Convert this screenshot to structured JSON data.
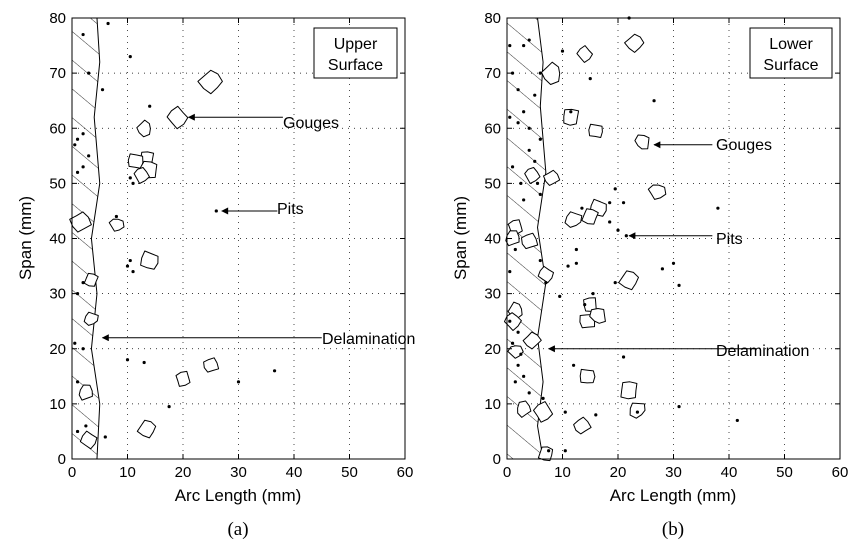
{
  "figure": {
    "panels": [
      {
        "caption": "(a)",
        "legend": [
          "Upper",
          "Surface"
        ],
        "annotations": [
          "Gouges",
          "Pits",
          "Delamination"
        ],
        "chart_data": {
          "type": "scatter",
          "xlabel": "Arc Length (mm)",
          "ylabel": "Span (mm)",
          "xlim": [
            0,
            60
          ],
          "ylim": [
            0,
            80
          ],
          "xticks": [
            "0",
            "10",
            "20",
            "30",
            "40",
            "50",
            "60"
          ],
          "yticks": [
            "0",
            "10",
            "20",
            "30",
            "40",
            "50",
            "60",
            "70",
            "80"
          ],
          "grid": "dotted",
          "delamination_boundary": [
            [
              4.5,
              80
            ],
            [
              5.0,
              72
            ],
            [
              4.0,
              62
            ],
            [
              5.0,
              50
            ],
            [
              3.5,
              40
            ],
            [
              4.5,
              30
            ],
            [
              3.5,
              20
            ],
            [
              5.0,
              10
            ],
            [
              4.5,
              0
            ]
          ],
          "pits": [
            [
              2,
              77
            ],
            [
              6.5,
              79
            ],
            [
              10.5,
              73
            ],
            [
              3,
              70
            ],
            [
              5.5,
              67
            ],
            [
              14,
              64
            ],
            [
              1,
              58
            ],
            [
              2,
              59
            ],
            [
              0.5,
              57
            ],
            [
              3,
              55
            ],
            [
              2,
              53
            ],
            [
              1,
              52
            ],
            [
              10.5,
              51
            ],
            [
              11,
              50
            ],
            [
              8,
              44
            ],
            [
              10.5,
              36
            ],
            [
              10,
              35
            ],
            [
              11,
              34
            ],
            [
              2,
              32
            ],
            [
              1,
              30
            ],
            [
              2,
              20
            ],
            [
              0.5,
              21
            ],
            [
              10,
              18
            ],
            [
              13,
              17.5
            ],
            [
              36.5,
              16
            ],
            [
              30,
              14
            ],
            [
              1,
              14
            ],
            [
              17.5,
              9.5
            ],
            [
              2.5,
              6
            ],
            [
              1,
              5
            ],
            [
              6,
              4
            ],
            [
              26,
              45
            ]
          ],
          "gouges": [
            [
              25,
              68.5,
              1.8
            ],
            [
              19,
              62,
              1.6
            ],
            [
              13,
              60,
              1.2
            ],
            [
              13.5,
              54.5,
              1.2
            ],
            [
              11.5,
              54,
              1.3
            ],
            [
              14,
              52.5,
              1.4
            ],
            [
              12.5,
              51.5,
              1.2
            ],
            [
              1.5,
              43,
              1.6
            ],
            [
              8,
              42.5,
              1.1
            ],
            [
              14,
              36,
              1.5
            ],
            [
              3.5,
              32.5,
              1.1
            ],
            [
              3.5,
              25.5,
              1.1
            ],
            [
              25,
              17,
              1.2
            ],
            [
              20,
              14.5,
              1.2
            ],
            [
              2.5,
              12,
              1.2
            ],
            [
              13.5,
              5.5,
              1.4
            ],
            [
              3,
              3.5,
              1.3
            ]
          ],
          "arrows": [
            {
              "label": "Gouges",
              "from": [
                38,
                62
              ],
              "to": [
                21,
                62
              ]
            },
            {
              "label": "Pits",
              "from": [
                37,
                45
              ],
              "to": [
                27,
                45
              ]
            },
            {
              "label": "Delamination",
              "from": [
                45,
                22
              ],
              "to": [
                5.5,
                22
              ]
            }
          ]
        }
      },
      {
        "caption": "(b)",
        "legend": [
          "Lower",
          "Surface"
        ],
        "annotations": [
          "Gouges",
          "Pits",
          "Delamination"
        ],
        "chart_data": {
          "type": "scatter",
          "xlabel": "Arc Length (mm)",
          "ylabel": "Span (mm)",
          "xlim": [
            0,
            60
          ],
          "ylim": [
            0,
            80
          ],
          "xticks": [
            "0",
            "10",
            "20",
            "30",
            "40",
            "50",
            "60"
          ],
          "yticks": [
            "0",
            "10",
            "20",
            "30",
            "40",
            "50",
            "60",
            "70",
            "80"
          ],
          "grid": "dotted",
          "delamination_boundary": [
            [
              5.5,
              80
            ],
            [
              6.5,
              72
            ],
            [
              6.0,
              64
            ],
            [
              7.0,
              52
            ],
            [
              5.5,
              42
            ],
            [
              7.0,
              32
            ],
            [
              5.5,
              22
            ],
            [
              6.5,
              14
            ],
            [
              5.5,
              6
            ],
            [
              6.5,
              0
            ]
          ],
          "pits": [
            [
              22,
              80
            ],
            [
              0.5,
              75
            ],
            [
              3,
              75
            ],
            [
              4,
              76
            ],
            [
              10,
              74
            ],
            [
              1,
              70
            ],
            [
              6,
              70
            ],
            [
              15,
              69
            ],
            [
              2,
              67
            ],
            [
              5,
              66
            ],
            [
              3,
              63
            ],
            [
              11.5,
              63
            ],
            [
              26.5,
              65
            ],
            [
              2,
              61
            ],
            [
              4,
              60
            ],
            [
              0.5,
              62
            ],
            [
              6,
              58
            ],
            [
              4,
              56
            ],
            [
              5,
              54
            ],
            [
              1,
              53
            ],
            [
              2.5,
              50
            ],
            [
              5.5,
              50
            ],
            [
              6,
              48
            ],
            [
              19.5,
              49
            ],
            [
              3,
              47
            ],
            [
              18.5,
              46.5
            ],
            [
              21,
              46.5
            ],
            [
              13.5,
              45.5
            ],
            [
              18.5,
              43
            ],
            [
              20,
              41.5
            ],
            [
              21.5,
              40.5
            ],
            [
              12.5,
              38
            ],
            [
              1.5,
              38
            ],
            [
              6,
              36
            ],
            [
              11,
              35
            ],
            [
              12.5,
              35.5
            ],
            [
              30,
              35.5
            ],
            [
              28,
              34.5
            ],
            [
              0.5,
              34
            ],
            [
              7,
              32
            ],
            [
              19.5,
              32
            ],
            [
              31,
              31.5
            ],
            [
              9.5,
              29.5
            ],
            [
              15.5,
              30
            ],
            [
              14,
              28
            ],
            [
              0.5,
              25
            ],
            [
              2,
              23
            ],
            [
              1,
              21
            ],
            [
              2.5,
              19
            ],
            [
              12,
              17
            ],
            [
              2,
              17
            ],
            [
              3,
              15
            ],
            [
              1.5,
              14
            ],
            [
              4,
              12
            ],
            [
              6.5,
              11
            ],
            [
              21,
              18.5
            ],
            [
              38,
              45.5
            ],
            [
              10.5,
              8.5
            ],
            [
              23.5,
              8.5
            ],
            [
              16,
              8
            ],
            [
              31,
              9.5
            ],
            [
              41.5,
              7
            ],
            [
              7.5,
              1.5
            ],
            [
              10.5,
              1.5
            ]
          ],
          "gouges": [
            [
              23,
              75.5,
              1.4
            ],
            [
              14,
              73.5,
              1.2
            ],
            [
              8,
              70,
              1.6
            ],
            [
              11.5,
              62,
              1.4
            ],
            [
              16,
              59.5,
              1.2
            ],
            [
              24.5,
              57.5,
              1.2
            ],
            [
              4.5,
              51.5,
              1.2
            ],
            [
              8,
              51,
              1.2
            ],
            [
              27,
              48.5,
              1.3
            ],
            [
              16.5,
              45.5,
              1.4
            ],
            [
              15,
              44,
              1.3
            ],
            [
              12,
              43.5,
              1.3
            ],
            [
              4,
              39.5,
              1.3
            ],
            [
              1.5,
              42,
              1.2
            ],
            [
              1,
              40,
              1.2
            ],
            [
              22,
              32.5,
              1.5
            ],
            [
              7,
              33.5,
              1.2
            ],
            [
              1.5,
              27,
              1.2
            ],
            [
              15,
              28,
              1.2
            ],
            [
              14.5,
              25,
              1.3
            ],
            [
              16.5,
              26,
              1.3
            ],
            [
              1,
              25,
              1.3
            ],
            [
              4.5,
              21.5,
              1.3
            ],
            [
              1.5,
              19.5,
              1.1
            ],
            [
              14.5,
              15,
              1.3
            ],
            [
              22,
              12.5,
              1.5
            ],
            [
              23.5,
              9,
              1.3
            ],
            [
              13.5,
              6,
              1.3
            ],
            [
              6.5,
              8.5,
              1.5
            ],
            [
              3,
              9,
              1.2
            ],
            [
              7,
              1,
              1.2
            ]
          ],
          "arrows": [
            {
              "label": "Gouges",
              "from": [
                37,
                57
              ],
              "to": [
                26.5,
                57
              ]
            },
            {
              "label": "Pits",
              "from": [
                37,
                40.5
              ],
              "to": [
                22,
                40.5
              ]
            },
            {
              "label": "Delamination",
              "from": [
                45,
                20
              ],
              "to": [
                7.5,
                20
              ]
            }
          ]
        }
      }
    ]
  }
}
